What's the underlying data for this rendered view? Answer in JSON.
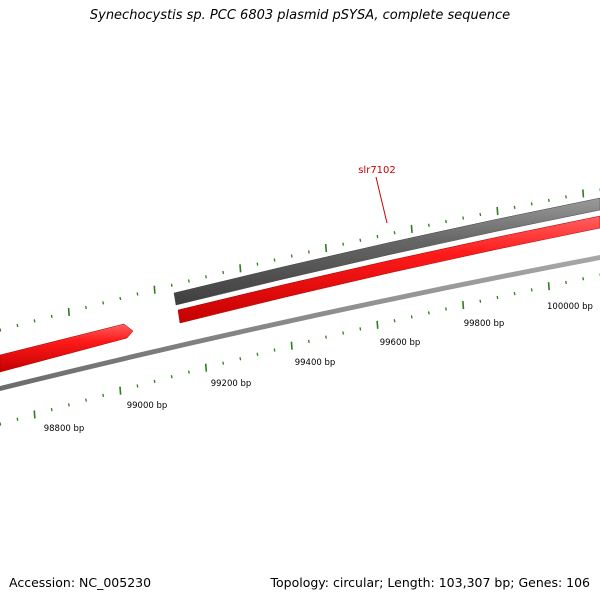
{
  "title": "Synechocystis sp. PCC 6803 plasmid pSYSA, complete sequence",
  "footer": {
    "accession": "Accession: NC_005230",
    "summary": "Topology: circular; Length: 103,307 bp; Genes: 106"
  },
  "gene_label": "slr7102",
  "colors": {
    "forward_gene": "#ee1111",
    "reverse_gene": "#707070",
    "backbone": "#888888",
    "ticks": "#2e7d1e",
    "label": "#cc0000"
  },
  "scale_labels": [
    "98800 bp",
    "99000 bp",
    "99200 bp",
    "99400 bp",
    "99600 bp",
    "99800 bp",
    "100000 bp"
  ]
}
